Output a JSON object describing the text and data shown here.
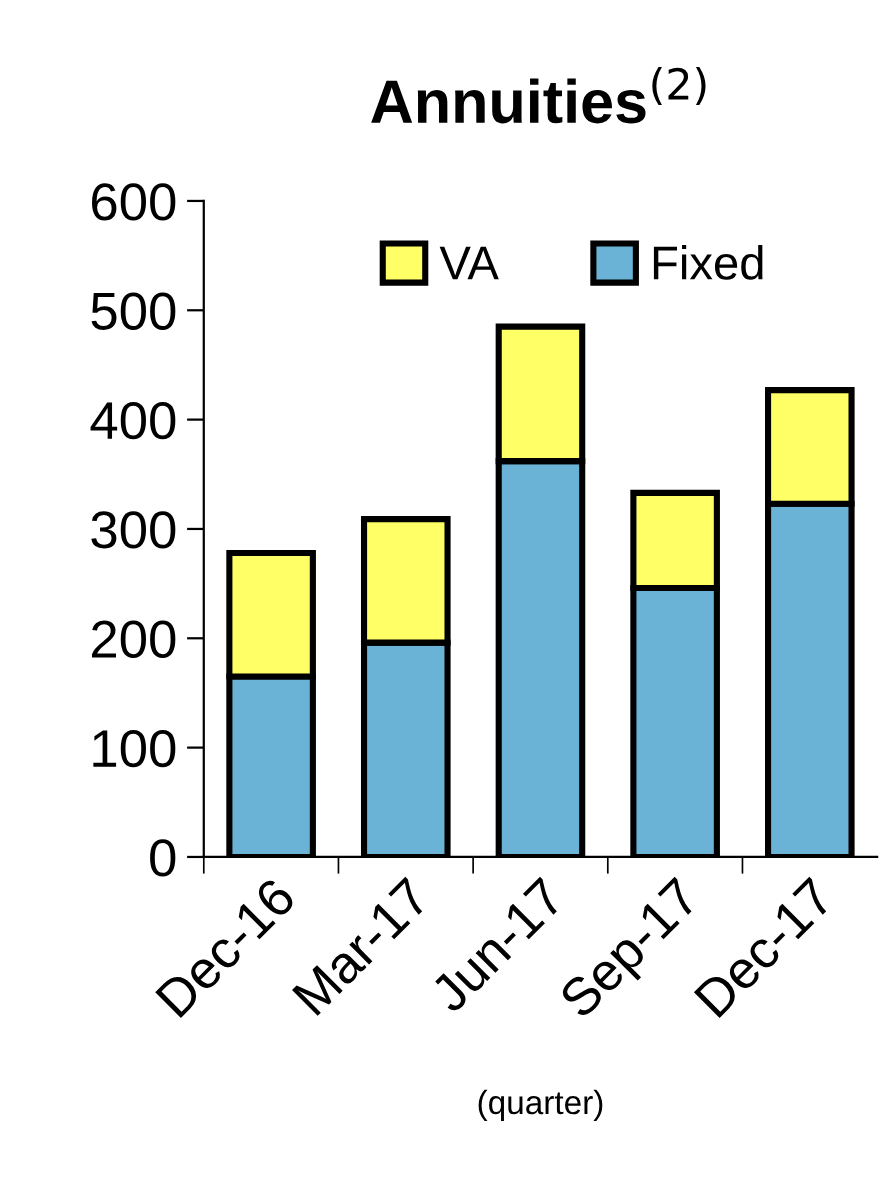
{
  "chart_data": {
    "type": "bar",
    "title": "Annuities$^{(2)}$",
    "xlabel": "(quarter)",
    "categories": [
      "Dec-16",
      "Mar-17",
      "Jun-17",
      "Sep-17",
      "Dec-17"
    ],
    "stacked": true,
    "series": [
      {
        "name": "Fixed",
        "color": "#6bb3d6",
        "values": [
          165,
          196,
          362,
          246,
          323
        ]
      },
      {
        "name": "VA",
        "color": "#ffff66",
        "values": [
          113,
          113,
          123,
          87,
          104
        ]
      }
    ],
    "ylim": [
      0,
      600
    ],
    "yticks": [
      0,
      100,
      200,
      300,
      400,
      500,
      600
    ],
    "grid": false,
    "legend": "top"
  }
}
